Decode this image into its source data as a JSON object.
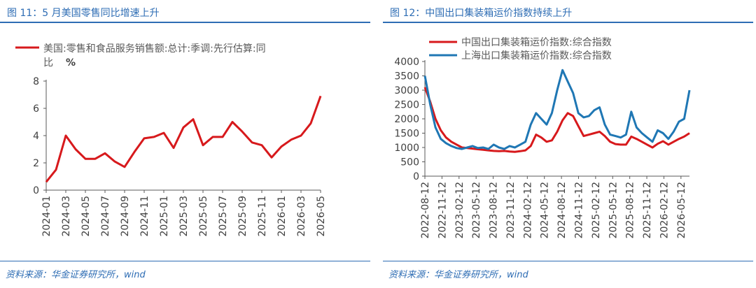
{
  "theme": {
    "title_color": "#2e6db4",
    "rule_color": "#2e6db4",
    "axis_color": "#595959",
    "text_color": "#404040",
    "legend_text_color": "#595959"
  },
  "left": {
    "title": "图 11：5 月美国零售同比增速上升",
    "source": "资料来源：华金证券研究所，wind"
  },
  "right": {
    "title": "图 12：中国出口集装箱运价指数持续上升",
    "source": "资料来源：华金证券研究所，wind"
  },
  "chart_data": [
    {
      "type": "line",
      "legend_position": "top-left",
      "grid": false,
      "legend_line1": "美国:零售和食品服务销售额:总计:季调:先行估算:同",
      "legend_line2": "比",
      "unit": "%",
      "ylim": [
        0,
        8
      ],
      "yticks": [
        0,
        2,
        4,
        6,
        8
      ],
      "x": [
        "2024-01",
        "2024-02",
        "2024-03",
        "2024-04",
        "2024-05",
        "2024-06",
        "2024-07",
        "2024-08",
        "2024-09",
        "2024-10",
        "2024-11",
        "2024-12",
        "2025-01",
        "2025-02",
        "2025-03",
        "2025-04",
        "2025-05",
        "2025-06",
        "2025-07",
        "2025-08",
        "2025-09",
        "2025-10",
        "2025-11",
        "2025-12",
        "2026-01",
        "2026-02",
        "2026-03",
        "2026-04",
        "2026-05"
      ],
      "xticks": [
        "2024-01",
        "2024-03",
        "2024-05",
        "2024-07",
        "2024-09",
        "2024-11",
        "2025-01",
        "2025-03",
        "2025-05",
        "2025-07",
        "2025-09",
        "2025-11",
        "2026-01",
        "2026-03",
        "2026-05"
      ],
      "series": [
        {
          "name": "美国:零售和食品服务销售额:总计:季调:先行估算:同比",
          "color": "#d7191c",
          "values": [
            0.6,
            1.5,
            4.0,
            3.0,
            2.3,
            2.3,
            2.7,
            2.1,
            1.7,
            2.8,
            3.8,
            3.9,
            4.2,
            3.1,
            4.6,
            5.2,
            3.3,
            3.9,
            3.9,
            5.0,
            4.3,
            3.5,
            3.3,
            2.4,
            3.2,
            3.7,
            4.0,
            4.9,
            6.9
          ]
        }
      ]
    },
    {
      "type": "line",
      "legend_position": "top",
      "grid": false,
      "ylim": [
        0,
        4000
      ],
      "yticks": [
        0,
        500,
        1000,
        1500,
        2000,
        2500,
        3000,
        3500,
        4000
      ],
      "x_start": "2022-08",
      "xlim_months": [
        0,
        46.5
      ],
      "xticks": [
        "2022-08-12",
        "2022-11-12",
        "2023-02-12",
        "2023-05-12",
        "2023-08-12",
        "2023-11-12",
        "2024-02-12",
        "2024-05-12",
        "2024-08-12",
        "2024-11-12",
        "2025-02-12",
        "2025-05-12",
        "2025-08-12",
        "2025-11-12",
        "2026-02-12",
        "2026-05-12"
      ],
      "series": [
        {
          "name": "中国出口集装箱运价指数:综合指数",
          "color": "#d7191c",
          "points": [
            [
              0,
              3100
            ],
            [
              1,
              2600
            ],
            [
              2,
              2000
            ],
            [
              3,
              1600
            ],
            [
              4,
              1350
            ],
            [
              5,
              1200
            ],
            [
              6,
              1100
            ],
            [
              7,
              1000
            ],
            [
              8,
              980
            ],
            [
              9,
              960
            ],
            [
              10,
              940
            ],
            [
              11,
              920
            ],
            [
              12,
              900
            ],
            [
              13,
              880
            ],
            [
              14,
              870
            ],
            [
              15,
              880
            ],
            [
              16,
              860
            ],
            [
              17,
              850
            ],
            [
              18,
              870
            ],
            [
              19,
              900
            ],
            [
              20,
              1050
            ],
            [
              21,
              1450
            ],
            [
              22,
              1350
            ],
            [
              23,
              1200
            ],
            [
              24,
              1250
            ],
            [
              25,
              1550
            ],
            [
              26,
              1950
            ],
            [
              27,
              2200
            ],
            [
              28,
              2100
            ],
            [
              29,
              1750
            ],
            [
              30,
              1400
            ],
            [
              31,
              1450
            ],
            [
              32,
              1500
            ],
            [
              33,
              1550
            ],
            [
              34,
              1400
            ],
            [
              35,
              1200
            ],
            [
              36,
              1120
            ],
            [
              37,
              1100
            ],
            [
              38,
              1100
            ],
            [
              39,
              1380
            ],
            [
              40,
              1300
            ],
            [
              41,
              1200
            ],
            [
              42,
              1100
            ],
            [
              43,
              1000
            ],
            [
              44,
              1130
            ],
            [
              45,
              1220
            ],
            [
              46,
              1100
            ],
            [
              47,
              1200
            ],
            [
              48,
              1300
            ],
            [
              49,
              1380
            ],
            [
              50,
              1500
            ]
          ]
        },
        {
          "name": "上海出口集装箱运价指数:综合指数",
          "color": "#1f77b4",
          "points": [
            [
              0,
              3500
            ],
            [
              1,
              2500
            ],
            [
              2,
              1700
            ],
            [
              3,
              1300
            ],
            [
              4,
              1150
            ],
            [
              5,
              1050
            ],
            [
              6,
              980
            ],
            [
              7,
              950
            ],
            [
              8,
              1000
            ],
            [
              9,
              1050
            ],
            [
              10,
              980
            ],
            [
              11,
              1000
            ],
            [
              12,
              950
            ],
            [
              13,
              1100
            ],
            [
              14,
              1000
            ],
            [
              15,
              950
            ],
            [
              16,
              1050
            ],
            [
              17,
              1000
            ],
            [
              18,
              1100
            ],
            [
              19,
              1200
            ],
            [
              20,
              1800
            ],
            [
              21,
              2200
            ],
            [
              22,
              2000
            ],
            [
              23,
              1800
            ],
            [
              24,
              2200
            ],
            [
              25,
              3000
            ],
            [
              26,
              3700
            ],
            [
              27,
              3300
            ],
            [
              28,
              2900
            ],
            [
              29,
              2200
            ],
            [
              30,
              2050
            ],
            [
              31,
              2100
            ],
            [
              32,
              2300
            ],
            [
              33,
              2400
            ],
            [
              34,
              1800
            ],
            [
              35,
              1450
            ],
            [
              36,
              1400
            ],
            [
              37,
              1350
            ],
            [
              38,
              1450
            ],
            [
              39,
              2250
            ],
            [
              40,
              1700
            ],
            [
              41,
              1500
            ],
            [
              42,
              1350
            ],
            [
              43,
              1200
            ],
            [
              44,
              1600
            ],
            [
              45,
              1500
            ],
            [
              46,
              1300
            ],
            [
              47,
              1550
            ],
            [
              48,
              1900
            ],
            [
              49,
              2000
            ],
            [
              50,
              3000
            ]
          ]
        }
      ]
    }
  ]
}
